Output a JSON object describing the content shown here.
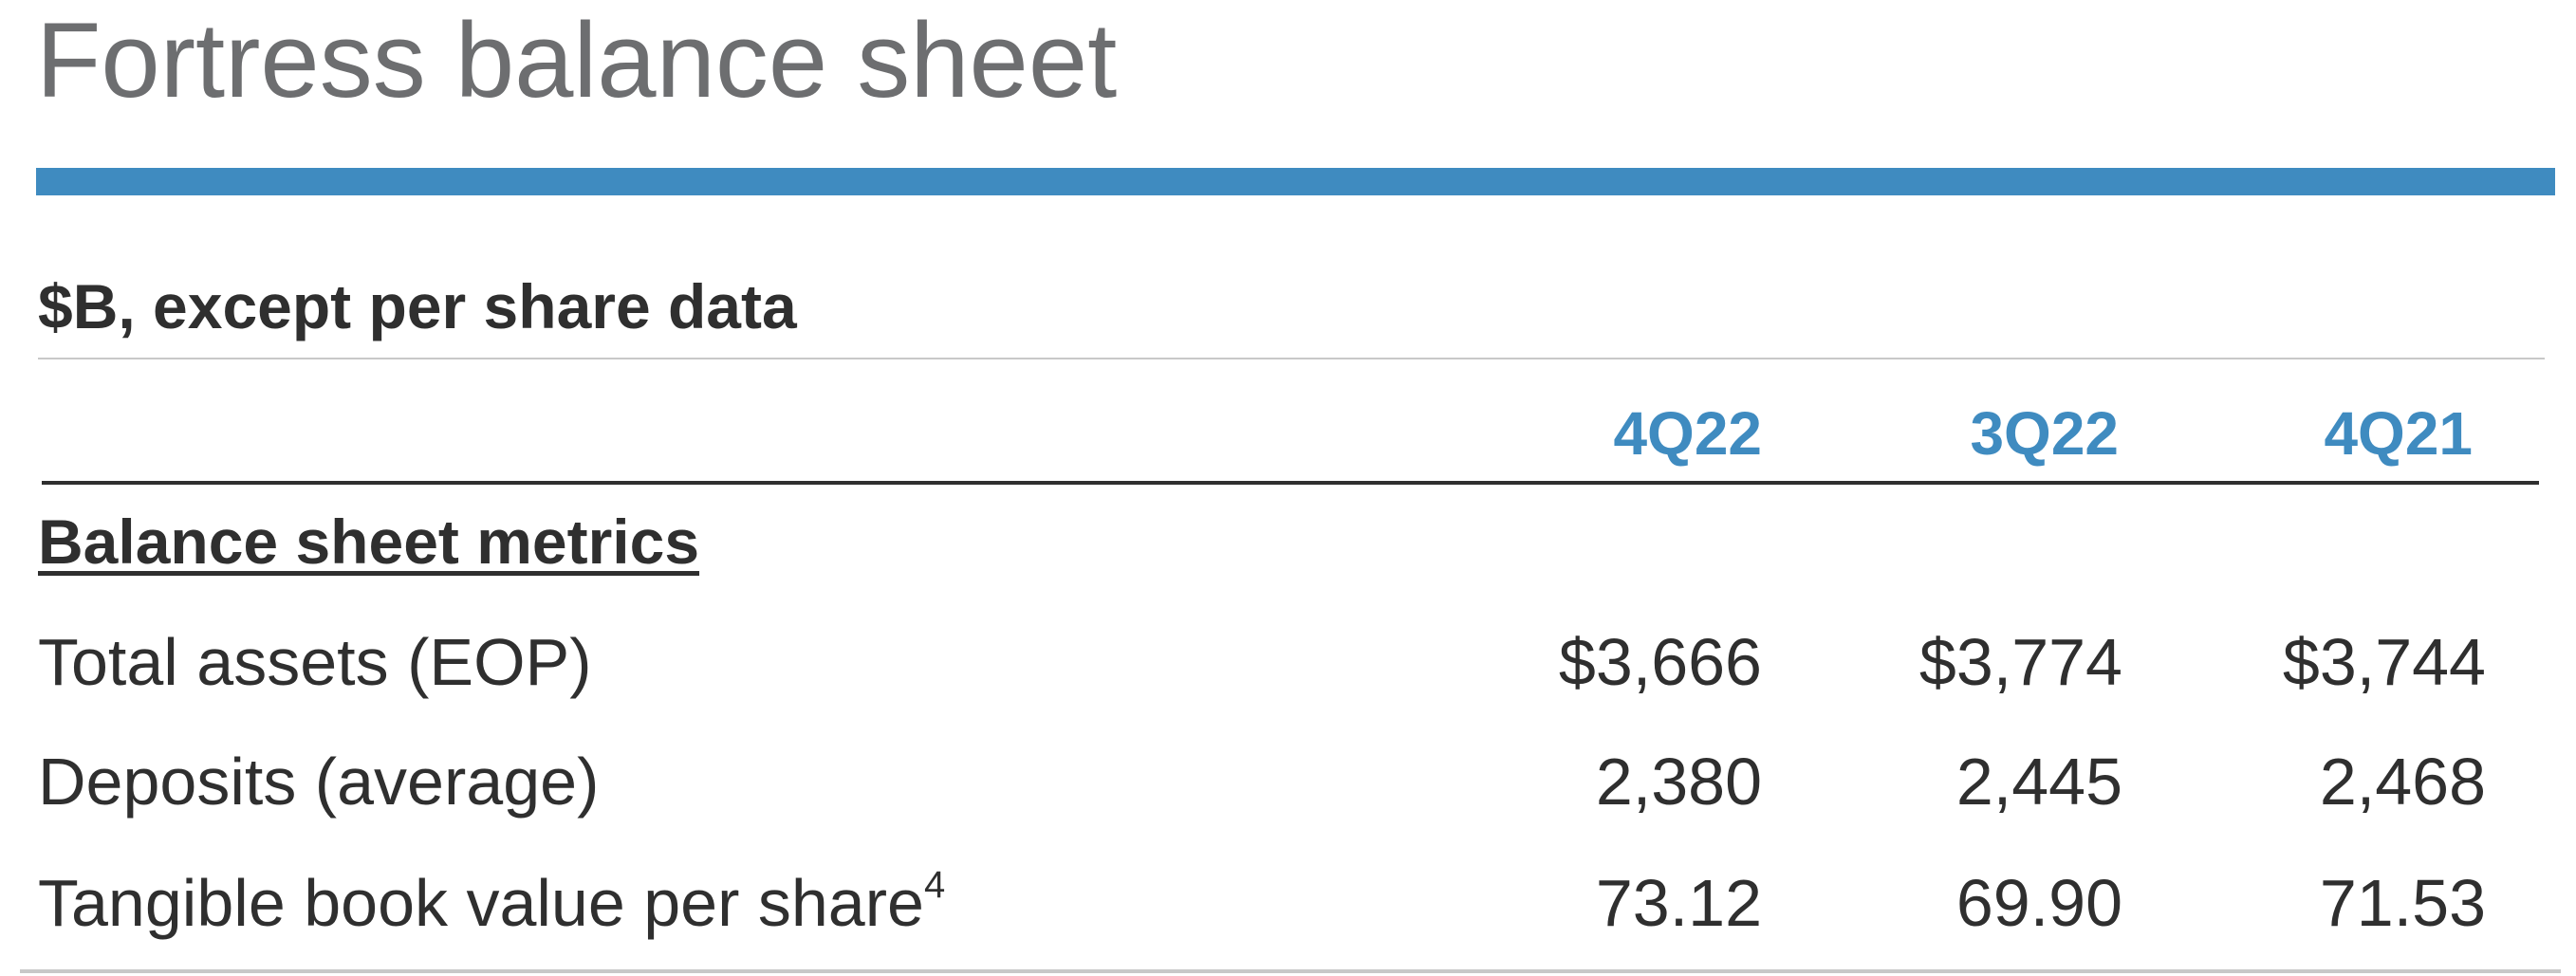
{
  "header": {
    "title": "Fortress balance sheet",
    "subtitle": "$B, except per share data"
  },
  "table": {
    "columns": [
      "4Q22",
      "3Q22",
      "4Q21"
    ],
    "section": "Balance sheet metrics",
    "rows": [
      {
        "label": "Total assets (EOP)",
        "cells": [
          "$3,666",
          "$3,774",
          "$3,744"
        ]
      },
      {
        "label": "Deposits (average)",
        "cells": [
          "2,380",
          "2,445",
          "2,468"
        ]
      },
      {
        "label": "Tangible book value per share",
        "footnote": "4",
        "cells": [
          "73.12",
          "69.90",
          "71.53"
        ]
      }
    ]
  }
}
